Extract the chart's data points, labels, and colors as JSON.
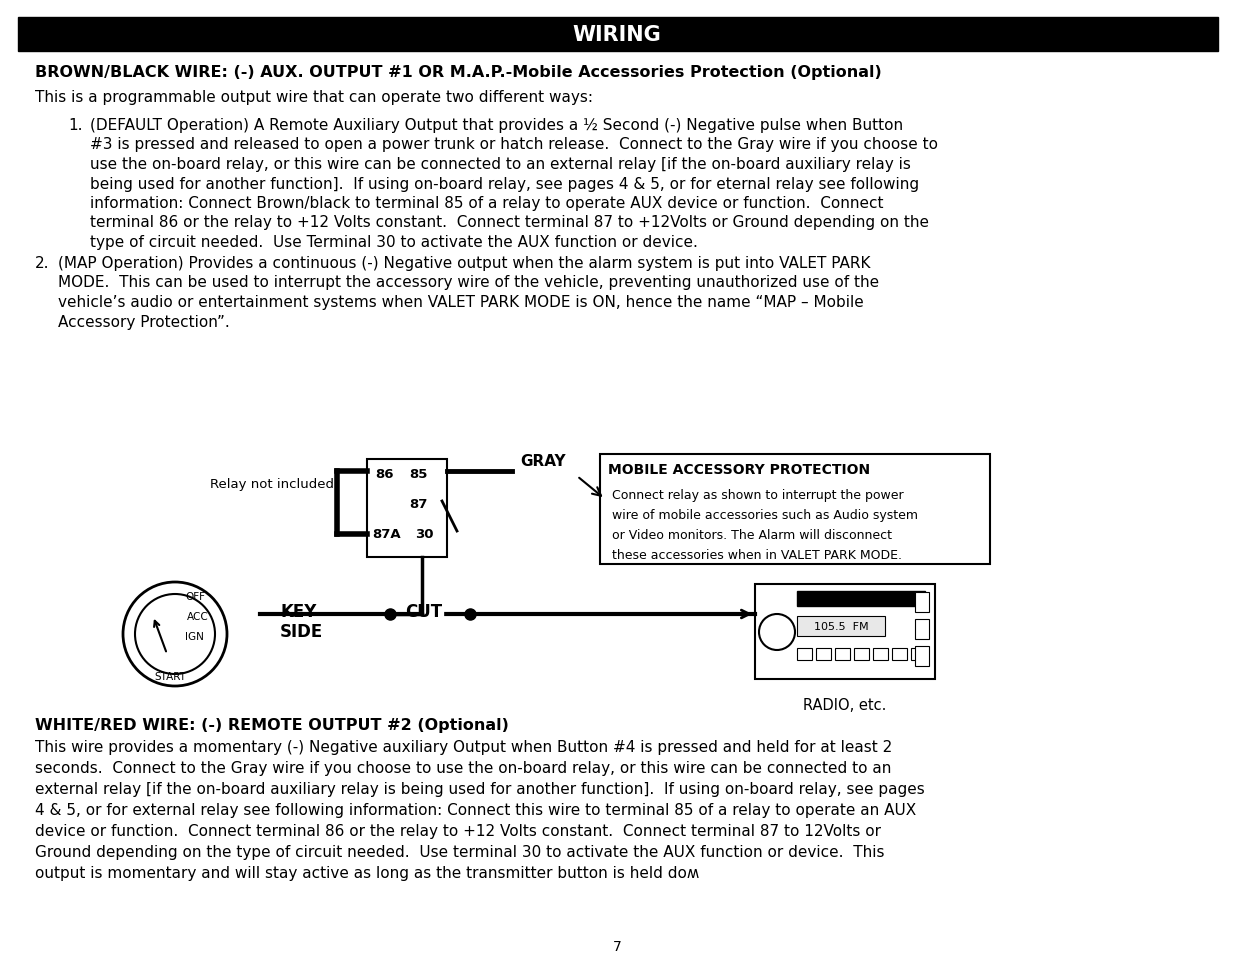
{
  "title": "WIRING",
  "bg_color": "#ffffff",
  "title_bg": "#000000",
  "title_fg": "#ffffff",
  "section1_bold": "BROWN/BLACK WIRE: (-) AUX. OUTPUT #1 OR M.A.P.-Mobile Accessories Protection (Optional)",
  "section1_text": "This is a programmable output wire that can operate two different ways:",
  "item1_lines": [
    "(DEFAULT Operation) A Remote Auxiliary Output that provides a ½ Second (-) Negative pulse when Button",
    "#3 is pressed and released to open a power trunk or hatch release.  Connect to the Gray wire if you choose to",
    "use the on-board relay, or this wire can be connected to an external relay [if the on-board auxiliary relay is",
    "being used for another function].  If using on-board relay, see pages 4 & 5, or for eternal relay see following",
    "information: Connect Brown/black to terminal 85 of a relay to operate AUX device or function.  Connect",
    "terminal 86 or the relay to +12 Volts constant.  Connect terminal 87 to +12Volts or Ground depending on the",
    "type of circuit needed.  Use Terminal 30 to activate the AUX function or device."
  ],
  "item2_lines": [
    "(MAP Operation) Provides a continuous (-) Negative output when the alarm system is put into VALET PARK",
    "MODE.  This can be used to interrupt the accessory wire of the vehicle, preventing unauthorized use of the",
    "vehicle’s audio or entertainment systems when VALET PARK MODE is ON, hence the name “MAP – Mobile",
    "Accessory Protection”."
  ],
  "relay_label": "Relay not included",
  "gray_label": "GRAY",
  "map_box_title": "MOBILE ACCESSORY PROTECTION",
  "map_box_lines": [
    "Connect relay as shown to interrupt the power",
    "wire of mobile accessories such as Audio system",
    "or Video monitors. The Alarm will disconnect",
    "these accessories when in VALET PARK MODE."
  ],
  "key_label": "KEY",
  "side_label": "SIDE",
  "cut_label": "CUT",
  "radio_label": "RADIO, etc.",
  "radio_freq": "105.5  FM",
  "ignition_labels": [
    "OFF",
    "ACC",
    "IGN",
    "START"
  ],
  "section2_bold": "WHITE/RED WIRE: (-) REMOTE OUTPUT #2 (Optional)",
  "section2_lines": [
    "This wire provides a momentary (-) Negative auxiliary Output when Button #4 is pressed and held for at least 2",
    "seconds.  Connect to the Gray wire if you choose to use the on-board relay, or this wire can be connected to an",
    "external relay [if the on-board auxiliary relay is being used for another function].  If using on-board relay, see pages",
    "4 & 5, or for external relay see following information: Connect this wire to terminal 85 of a relay to operate an AUX",
    "device or function.  Connect terminal 86 or the relay to +12 Volts constant.  Connect terminal 87 to 12Volts or",
    "Ground depending on the type of circuit needed.  Use terminal 30 to activate the AUX function or device.  This",
    "output is momentary and will stay active as long as the transmitter button is held doʍ"
  ],
  "page_number": "7"
}
